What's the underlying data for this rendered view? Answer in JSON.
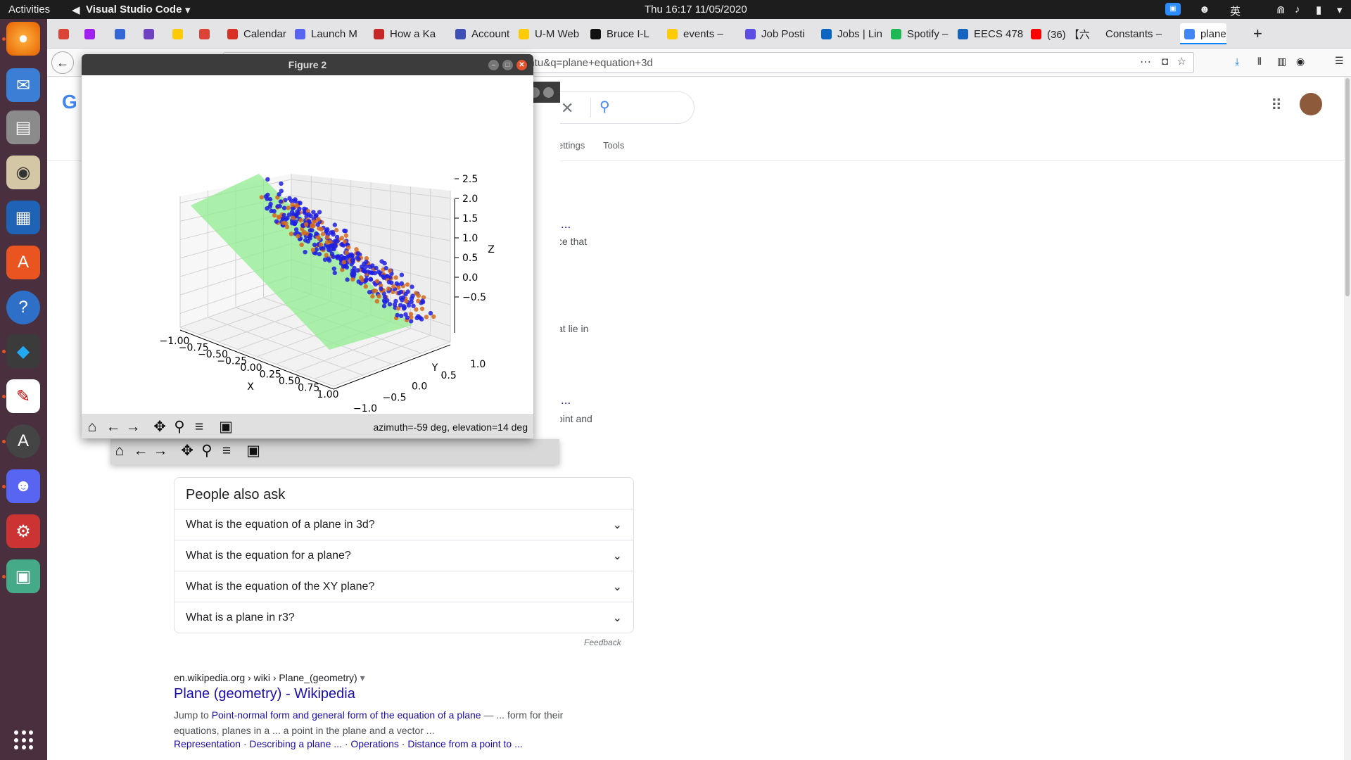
{
  "topbar": {
    "activities": "Activities",
    "app": "Visual Studio Code",
    "clock": "Thu 16:17   11/05/2020",
    "ime": "英"
  },
  "tabs": [
    {
      "label": "",
      "color": "#db4437"
    },
    {
      "label": "",
      "color": "#a020f0"
    },
    {
      "label": "",
      "color": "#3367d6"
    },
    {
      "label": "",
      "color": "#6f42c1"
    },
    {
      "label": "",
      "color": "#ffcb05"
    },
    {
      "label": "",
      "color": "#db4437"
    },
    {
      "label": "Calendar",
      "color": "#d93025"
    },
    {
      "label": "Launch M",
      "color": "#5865f2"
    },
    {
      "label": "How a Ka",
      "color": "#c62828"
    },
    {
      "label": "Account",
      "color": "#3f51b5"
    },
    {
      "label": "U-M Web",
      "color": "#ffcb05"
    },
    {
      "label": "Bruce I-L",
      "color": "#111111"
    },
    {
      "label": "events –",
      "color": "#ffcb05"
    },
    {
      "label": "Job Posti",
      "color": "#5c4ee5"
    },
    {
      "label": "Jobs | Lin",
      "color": "#0a66c2"
    },
    {
      "label": "Spotify –",
      "color": "#1db954"
    },
    {
      "label": "EECS 478",
      "color": "#1565c0"
    },
    {
      "label": "(36) 【六",
      "color": "#ff0000"
    },
    {
      "label": "Constants –",
      "color": ""
    },
    {
      "label": "plane",
      "color": "#4285f4"
    }
  ],
  "url": "untu&q=plane+equation+3d",
  "figure": {
    "title": "Figure 2",
    "status": "azimuth=-59 deg, elevation=14 deg"
  },
  "people_also_ask": {
    "heading": "People also ask",
    "questions": [
      "What is the equation of a plane in 3d?",
      "What is the equation for a plane?",
      "What is the equation of the XY plane?",
      "What is a plane in r3?"
    ],
    "feedback": "Feedback"
  },
  "result": {
    "breadcrumb": "en.wikipedia.org › wiki › Plane_(geometry)",
    "title": "Plane (geometry) - Wikipedia",
    "snippet_prefix": "Jump to ",
    "snippet_link": "Point-normal form and general form of the equation of a plane",
    "snippet_rest": " — ... form for their",
    "snippet_line2": "equations, planes in a ... a point in the plane and a vector ...",
    "sitelinks": [
      "Representation",
      "Describing a plane ...",
      "Operations",
      "Distance from a point to ..."
    ]
  },
  "fragments": {
    "tools": "Tools",
    "settings": "ettings",
    "f1": "...",
    "f2": "ce that",
    "f3": "at lie in",
    "f4": "...",
    "f5": "oint and"
  },
  "chart_data": {
    "type": "scatter",
    "title": "",
    "xlabel": "X",
    "ylabel": "Y",
    "zlabel": "Z",
    "x_ticks": [
      "−1.00",
      "−0.75",
      "−0.50",
      "−0.25",
      "0.00",
      "0.25",
      "0.50",
      "0.75",
      "1.00"
    ],
    "y_ticks": [
      "−1.0",
      "−0.5",
      "0.0",
      "0.5",
      "1.0"
    ],
    "z_ticks": [
      "2.5",
      "2.0",
      "1.5",
      "1.0",
      "0.5",
      "0.0",
      "−0.5"
    ],
    "xlim": [
      -1,
      1
    ],
    "ylim": [
      -1,
      1
    ],
    "zlim": [
      -0.7,
      2.6
    ],
    "view": {
      "azimuth_deg": -59,
      "elevation_deg": 14
    },
    "plane": {
      "color": "#90ee90"
    },
    "series": [
      {
        "color": "#1f1fe0"
      },
      {
        "color": "#d2691e"
      }
    ]
  }
}
